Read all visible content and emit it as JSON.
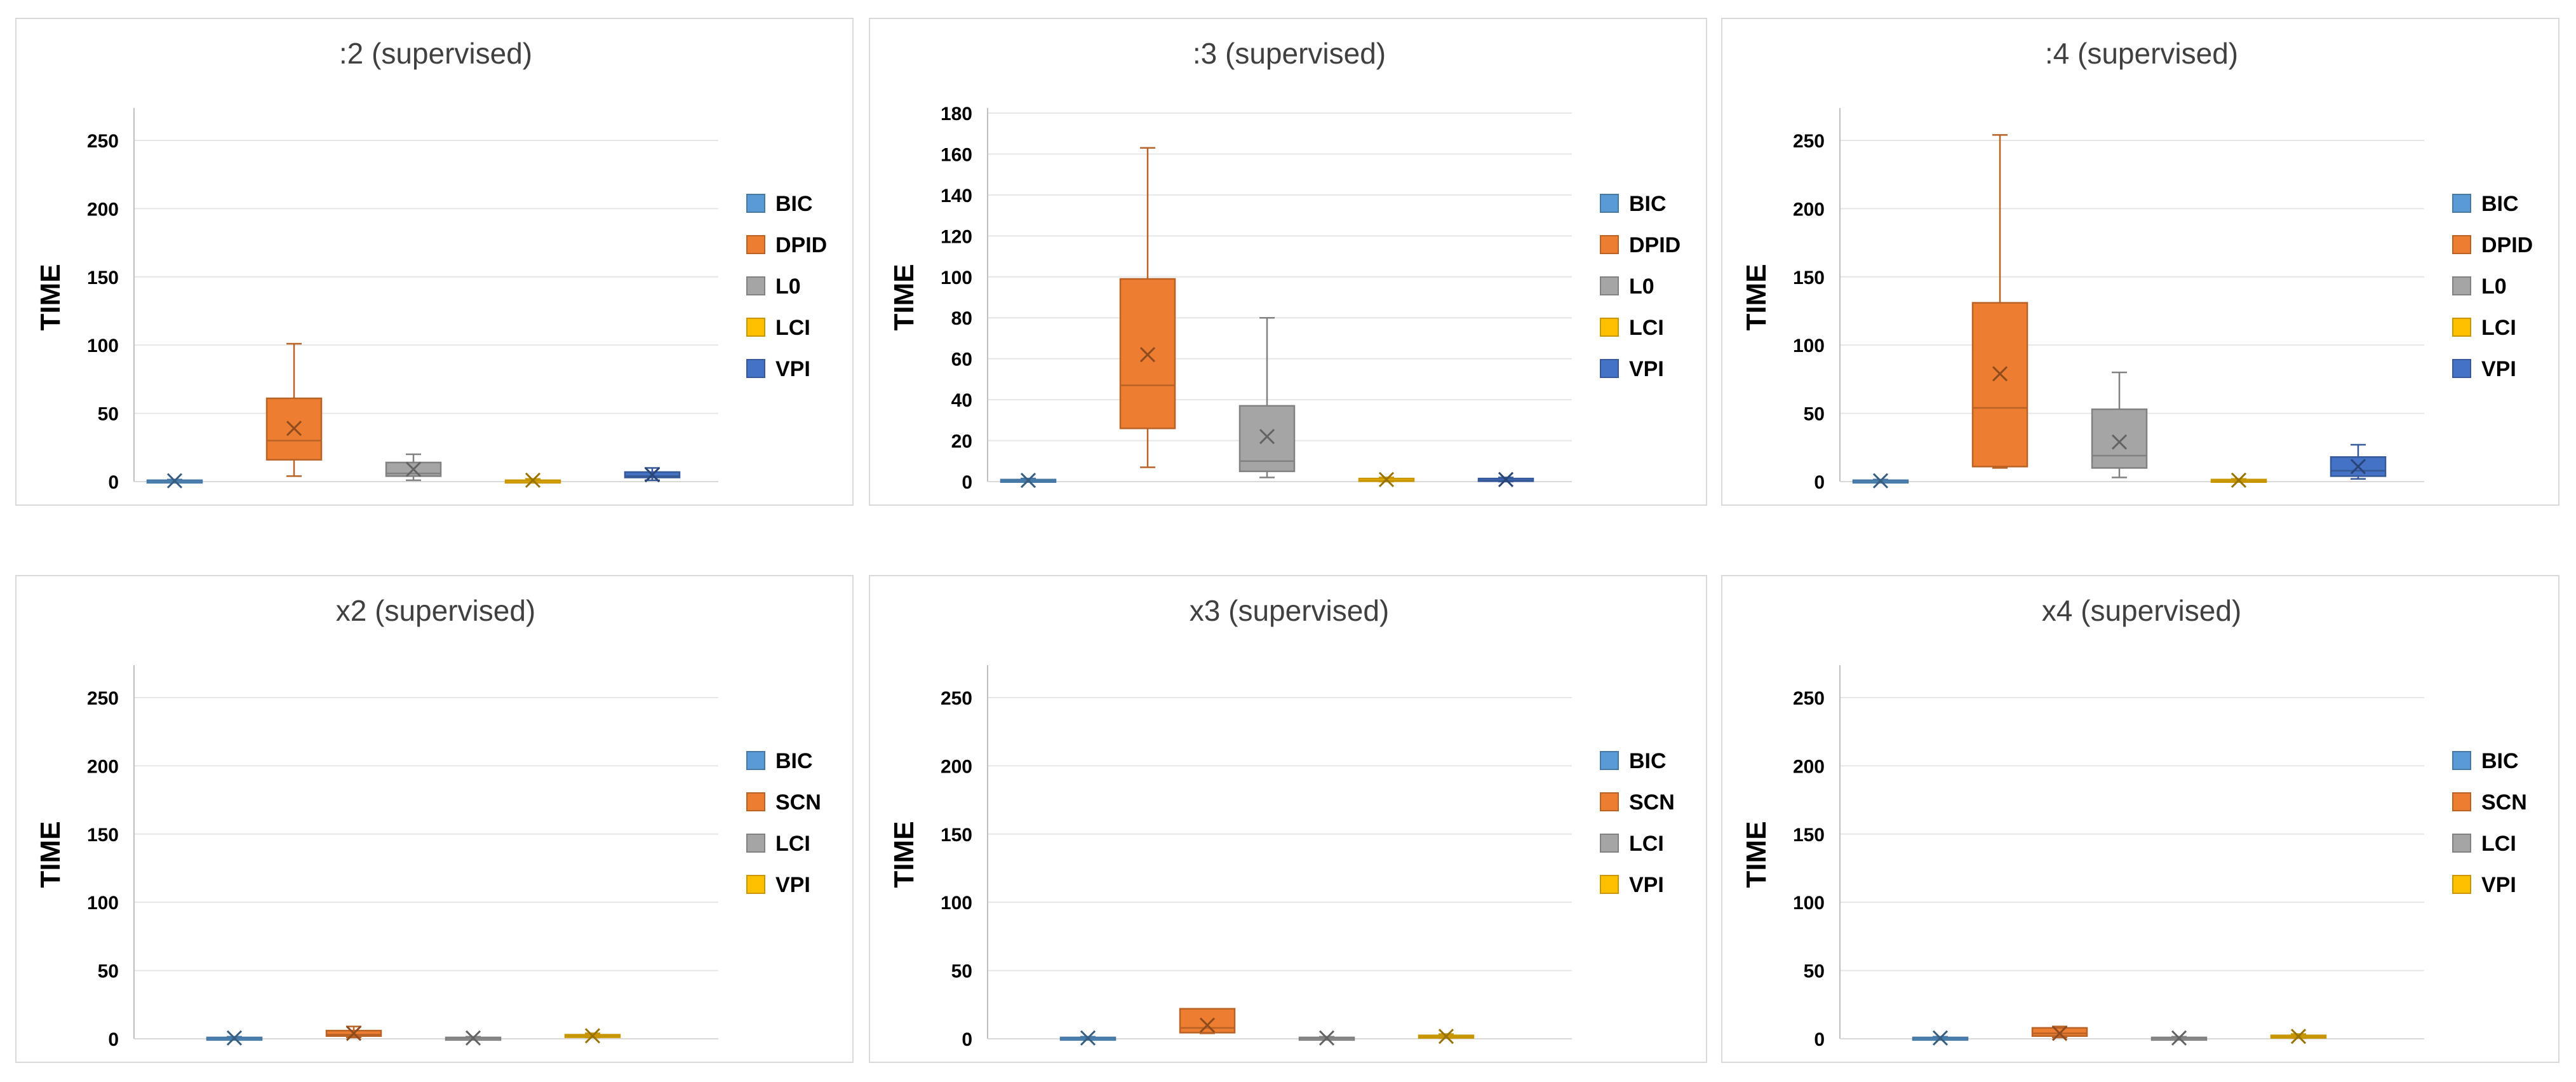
{
  "chart_data": [
    {
      "type": "box",
      "title": ":2 (supervised)",
      "ylabel": "TIME",
      "ylim": [
        0,
        270
      ],
      "yticks": [
        "0",
        "50",
        "100",
        "150",
        "200",
        "250"
      ],
      "legend_position": "right",
      "grid": true,
      "series": [
        {
          "name": "BIC",
          "color": "#5b9bd5",
          "min": 0,
          "q1": 0.2,
          "median": 0.5,
          "q3": 1,
          "max": 1.5,
          "mean": 0.6
        },
        {
          "name": "DPID",
          "color": "#ed7d31",
          "min": 4,
          "q1": 16,
          "median": 30,
          "q3": 61,
          "max": 101,
          "mean": 39
        },
        {
          "name": "L0",
          "color": "#a5a5a5",
          "min": 1,
          "q1": 4,
          "median": 6,
          "q3": 14,
          "max": 20,
          "mean": 9
        },
        {
          "name": "LCI",
          "color": "#ffc000",
          "min": 0,
          "q1": 0.2,
          "median": 0.5,
          "q3": 1,
          "max": 2,
          "mean": 1
        },
        {
          "name": "VPI",
          "color": "#4472c4",
          "min": 1,
          "q1": 3,
          "median": 4,
          "q3": 7,
          "max": 10,
          "mean": 5
        }
      ]
    },
    {
      "type": "box",
      "title": ":3 (supervised)",
      "ylabel": "TIME",
      "ylim": [
        0,
        180
      ],
      "yticks": [
        "0",
        "20",
        "40",
        "60",
        "80",
        "100",
        "120",
        "140",
        "160",
        "180"
      ],
      "legend_position": "right",
      "grid": true,
      "series": [
        {
          "name": "BIC",
          "color": "#5b9bd5",
          "min": 0,
          "q1": 0.2,
          "median": 0.5,
          "q3": 1,
          "max": 1.5,
          "mean": 0.6
        },
        {
          "name": "DPID",
          "color": "#ed7d31",
          "min": 7,
          "q1": 26,
          "median": 47,
          "q3": 99,
          "max": 163,
          "mean": 62
        },
        {
          "name": "L0",
          "color": "#a5a5a5",
          "min": 2,
          "q1": 5,
          "median": 10,
          "q3": 37,
          "max": 80,
          "mean": 22
        },
        {
          "name": "LCI",
          "color": "#ffc000",
          "min": 0,
          "q1": 0.2,
          "median": 0.5,
          "q3": 1.5,
          "max": 2,
          "mean": 1
        },
        {
          "name": "VPI",
          "color": "#4472c4",
          "min": 0,
          "q1": 0.2,
          "median": 0.5,
          "q3": 1.5,
          "max": 2,
          "mean": 1
        }
      ]
    },
    {
      "type": "box",
      "title": ":4 (supervised)",
      "ylabel": "TIME",
      "ylim": [
        0,
        270
      ],
      "yticks": [
        "0",
        "50",
        "100",
        "150",
        "200",
        "250"
      ],
      "legend_position": "right",
      "grid": true,
      "series": [
        {
          "name": "BIC",
          "color": "#5b9bd5",
          "min": 0,
          "q1": 0.2,
          "median": 0.5,
          "q3": 1,
          "max": 1.5,
          "mean": 0.6
        },
        {
          "name": "DPID",
          "color": "#ed7d31",
          "min": 10,
          "q1": 11,
          "median": 54,
          "q3": 131,
          "max": 254,
          "mean": 79
        },
        {
          "name": "L0",
          "color": "#a5a5a5",
          "min": 3,
          "q1": 10,
          "median": 19,
          "q3": 53,
          "max": 80,
          "mean": 29
        },
        {
          "name": "LCI",
          "color": "#ffc000",
          "min": 0,
          "q1": 0.2,
          "median": 0.5,
          "q3": 1.5,
          "max": 2,
          "mean": 1
        },
        {
          "name": "VPI",
          "color": "#4472c4",
          "min": 2,
          "q1": 4,
          "median": 8,
          "q3": 18,
          "max": 27,
          "mean": 11
        }
      ]
    },
    {
      "type": "box",
      "title": "x2 (supervised)",
      "ylabel": "TIME",
      "ylim": [
        0,
        270
      ],
      "yticks": [
        "0",
        "50",
        "100",
        "150",
        "200",
        "250"
      ],
      "legend_position": "right",
      "grid": true,
      "series": [
        {
          "name": "BIC",
          "color": "#5b9bd5",
          "min": 0,
          "q1": 0.2,
          "median": 0.5,
          "q3": 1,
          "max": 1.5,
          "mean": 0.6
        },
        {
          "name": "SCN",
          "color": "#ed7d31",
          "min": 1,
          "q1": 2,
          "median": 3,
          "q3": 6,
          "max": 9,
          "mean": 4
        },
        {
          "name": "LCI",
          "color": "#a5a5a5",
          "min": 0,
          "q1": 0.2,
          "median": 0.5,
          "q3": 1,
          "max": 1.5,
          "mean": 0.6
        },
        {
          "name": "VPI",
          "color": "#ffc000",
          "min": 1,
          "q1": 1.5,
          "median": 2,
          "q3": 3,
          "max": 4,
          "mean": 2.2
        }
      ]
    },
    {
      "type": "box",
      "title": "x3 (supervised)",
      "ylabel": "TIME",
      "ylim": [
        0,
        270
      ],
      "yticks": [
        "0",
        "50",
        "100",
        "150",
        "200",
        "250"
      ],
      "legend_position": "right",
      "grid": true,
      "series": [
        {
          "name": "BIC",
          "color": "#5b9bd5",
          "min": 0,
          "q1": 0.2,
          "median": 0.5,
          "q3": 1,
          "max": 1.5,
          "mean": 0.6
        },
        {
          "name": "SCN",
          "color": "#ed7d31",
          "min": 4,
          "q1": 4.5,
          "median": 8,
          "q3": 22,
          "max": 22,
          "mean": 10
        },
        {
          "name": "LCI",
          "color": "#a5a5a5",
          "min": 0,
          "q1": 0.2,
          "median": 0.5,
          "q3": 1,
          "max": 1.5,
          "mean": 0.6
        },
        {
          "name": "VPI",
          "color": "#ffc000",
          "min": 0.5,
          "q1": 1,
          "median": 1.5,
          "q3": 2.5,
          "max": 3.5,
          "mean": 1.8
        }
      ]
    },
    {
      "type": "box",
      "title": "x4 (supervised)",
      "ylabel": "TIME",
      "ylim": [
        0,
        270
      ],
      "yticks": [
        "0",
        "50",
        "100",
        "150",
        "200",
        "250"
      ],
      "legend_position": "right",
      "grid": true,
      "series": [
        {
          "name": "BIC",
          "color": "#5b9bd5",
          "min": 0,
          "q1": 0.2,
          "median": 0.5,
          "q3": 1,
          "max": 1.5,
          "mean": 0.6
        },
        {
          "name": "SCN",
          "color": "#ed7d31",
          "min": 1,
          "q1": 2,
          "median": 4,
          "q3": 8,
          "max": 9,
          "mean": 4
        },
        {
          "name": "LCI",
          "color": "#a5a5a5",
          "min": 0,
          "q1": 0.2,
          "median": 0.5,
          "q3": 1,
          "max": 1.5,
          "mean": 0.6
        },
        {
          "name": "VPI",
          "color": "#ffc000",
          "min": 0.5,
          "q1": 1,
          "median": 1.5,
          "q3": 2.5,
          "max": 3.5,
          "mean": 1.8
        }
      ]
    }
  ]
}
